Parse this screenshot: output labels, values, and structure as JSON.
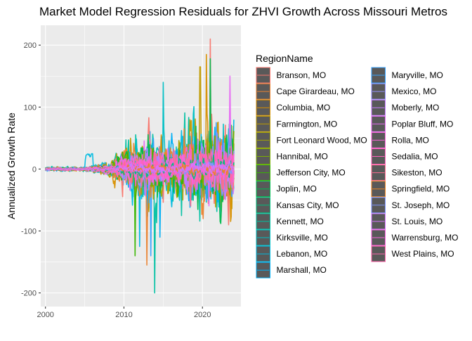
{
  "chart_data": {
    "type": "line",
    "title": "Market Model Regression Residuals for ZHVI Growth Across Missouri Metros",
    "xlabel": "",
    "ylabel": "Annualized Growth Rate",
    "xlim": [
      1999.4,
      2024.9
    ],
    "ylim": [
      -222,
      232
    ],
    "x_ticks": [
      2000,
      2010,
      2020
    ],
    "x_tick_labels": [
      "2000",
      "2010",
      "2020"
    ],
    "y_ticks": [
      -200,
      -100,
      0,
      100,
      200
    ],
    "y_tick_labels": [
      "-200",
      "-100",
      "0",
      "100",
      "200"
    ],
    "grid": true,
    "legend_title": "RegionName",
    "legend_position": "right",
    "series": [
      {
        "name": "Branson, MO",
        "color": "#F8766D",
        "amp": 0.8,
        "peak": [
          2021.0,
          210
        ]
      },
      {
        "name": "Cape Girardeau, MO",
        "color": "#EA8331",
        "amp": 0.75,
        "peak": [
          2012.9,
          -155
        ]
      },
      {
        "name": "Columbia, MO",
        "color": "#D89000",
        "amp": 0.85,
        "peak": [
          2020.5,
          185
        ]
      },
      {
        "name": "Farmington, MO",
        "color": "#C09B00",
        "amp": 0.9,
        "peak": [
          2019.7,
          165
        ]
      },
      {
        "name": "Fort Leonard Wood, MO",
        "color": "#A3A500",
        "amp": 0.7,
        "peak": null
      },
      {
        "name": "Hannibal, MO",
        "color": "#7CAE00",
        "amp": 0.6,
        "peak": null
      },
      {
        "name": "Jefferson City, MO",
        "color": "#39B600",
        "amp": 0.65,
        "peak": [
          2011.4,
          -140
        ]
      },
      {
        "name": "Joplin, MO",
        "color": "#00BB4E",
        "amp": 0.7,
        "peak": [
          2021.0,
          178
        ]
      },
      {
        "name": "Kansas City, MO",
        "color": "#00BF7D",
        "amp": 0.25,
        "peak": null
      },
      {
        "name": "Kennett, MO",
        "color": "#00C1A3",
        "amp": 1.0,
        "peak": [
          2013.9,
          -200
        ]
      },
      {
        "name": "Kirksville, MO",
        "color": "#00BFC4",
        "amp": 0.95,
        "peak": [
          2015.0,
          140
        ]
      },
      {
        "name": "Lebanon, MO",
        "color": "#00BAE0",
        "amp": 0.8,
        "peak": [
          2012.0,
          -125
        ]
      },
      {
        "name": "Marshall, MO",
        "color": "#00B0F6",
        "amp": 0.9,
        "peak": [
          2014.6,
          -110
        ]
      },
      {
        "name": "Maryville, MO",
        "color": "#35A2FF",
        "amp": 0.85,
        "peak": [
          2013.4,
          -140
        ]
      },
      {
        "name": "Mexico, MO",
        "color": "#9590FF",
        "amp": 0.6,
        "peak": null
      },
      {
        "name": "Moberly, MO",
        "color": "#C77CFF",
        "amp": 0.55,
        "peak": null
      },
      {
        "name": "Poplar Bluff, MO",
        "color": "#E76BF3",
        "amp": 0.65,
        "peak": [
          2023.5,
          150
        ]
      },
      {
        "name": "Rolla, MO",
        "color": "#FA62DB",
        "amp": 0.5,
        "peak": null
      },
      {
        "name": "Sedalia, MO",
        "color": "#FF62BC",
        "amp": 0.45,
        "peak": null
      },
      {
        "name": "Sikeston, MO",
        "color": "#FF6C91",
        "amp": 0.55,
        "peak": null
      },
      {
        "name": "Springfield, MO",
        "color": "#E88526",
        "amp": 0.12,
        "peak": null
      },
      {
        "name": "St. Joseph, MO",
        "color": "#7F96FF",
        "amp": 0.15,
        "peak": null
      },
      {
        "name": "St. Louis, MO",
        "color": "#D575FE",
        "amp": 0.12,
        "peak": null
      },
      {
        "name": "Warrensburg, MO",
        "color": "#F962DD",
        "amp": 0.15,
        "peak": null
      },
      {
        "name": "West Plains, MO",
        "color": "#FF65AC",
        "amp": 0.18,
        "peak": null
      }
    ]
  }
}
